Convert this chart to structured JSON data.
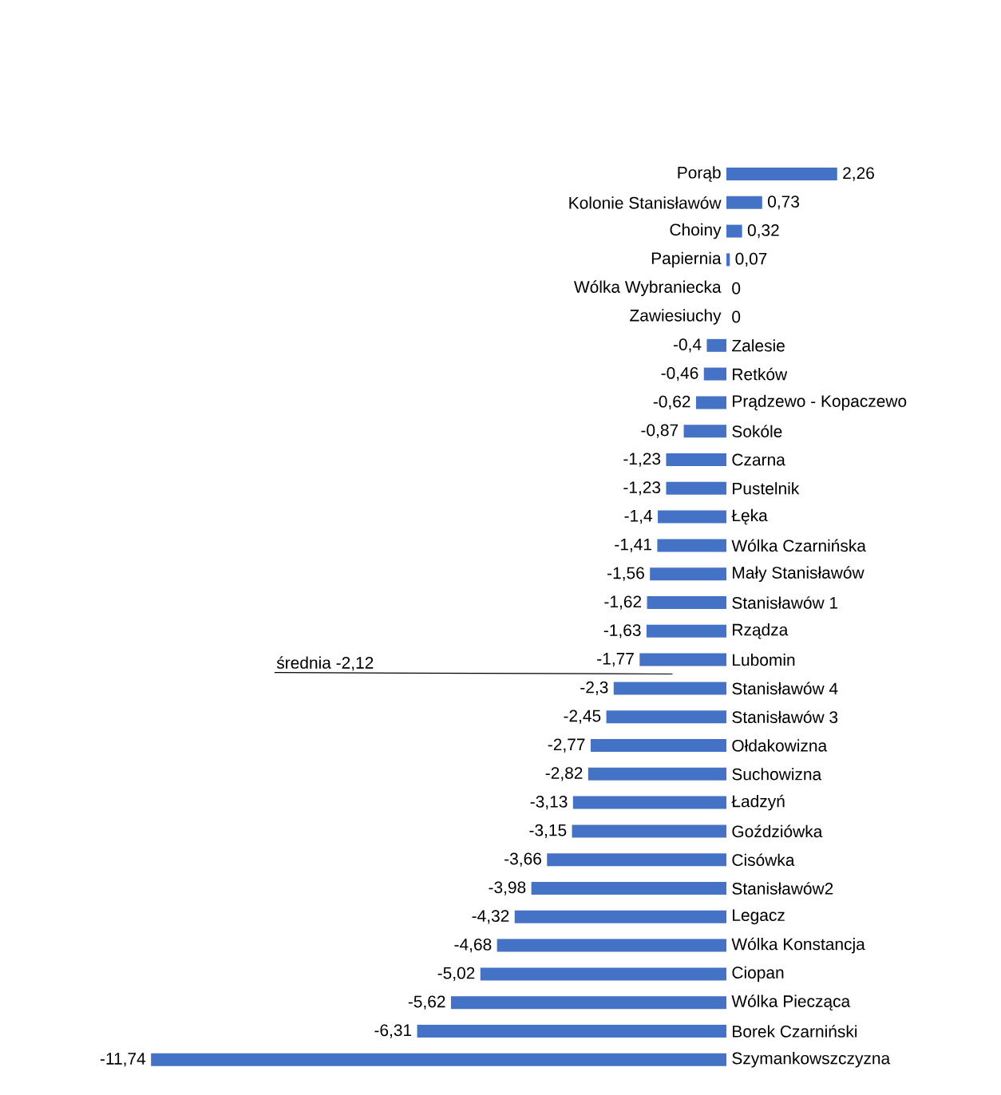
{
  "chart_data": {
    "type": "bar",
    "orientation": "horizontal",
    "color": "#4472c4",
    "categories": [
      "Porąb",
      "Kolonie Stanisławów",
      "Choiny",
      "Papiernia",
      "Wólka Wybraniecka",
      "Zawiesiuchy",
      "Zalesie",
      "Retków",
      "Prądzewo - Kopaczewo",
      "Sokóle",
      "Czarna",
      "Pustelnik",
      "Łęka",
      "Wólka Czarnińska",
      "Mały Stanisławów",
      "Stanisławów 1",
      "Rządza",
      "Lubomin",
      "Stanisławów 4",
      "Stanisławów 3",
      "Ołdakowizna",
      "Suchowizna",
      "Ładzyń",
      "Goździówka",
      "Cisówka",
      "Stanisławów2",
      "Legacz",
      "Wólka Konstancja",
      "Ciopan",
      "Wólka Piecząca",
      "Borek Czarniński",
      "Szymankowszczyzna"
    ],
    "values": [
      2.26,
      0.73,
      0.32,
      0.07,
      0,
      0,
      -0.4,
      -0.46,
      -0.62,
      -0.87,
      -1.23,
      -1.23,
      -1.4,
      -1.41,
      -1.56,
      -1.62,
      -1.63,
      -1.77,
      -2.3,
      -2.45,
      -2.77,
      -2.82,
      -3.13,
      -3.15,
      -3.66,
      -3.98,
      -4.32,
      -4.68,
      -5.02,
      -5.62,
      -6.31,
      -11.74
    ],
    "value_labels": [
      "2,26",
      "0,73",
      "0,32",
      "0,07",
      "0",
      "0",
      "-0,4",
      "-0,46",
      "-0,62",
      "-0,87",
      "-1,23",
      "-1,23",
      "-1,4",
      "-1,41",
      "-1,56",
      "-1,62",
      "-1,63",
      "-1,77",
      "-2,3",
      "-2,45",
      "-2,77",
      "-2,82",
      "-3,13",
      "-3,15",
      "-3,66",
      "-3,98",
      "-4,32",
      "-4,68",
      "-5,02",
      "-5,62",
      "-6,31",
      "-11,74"
    ],
    "annotations": [
      "średnia -2,12"
    ]
  }
}
